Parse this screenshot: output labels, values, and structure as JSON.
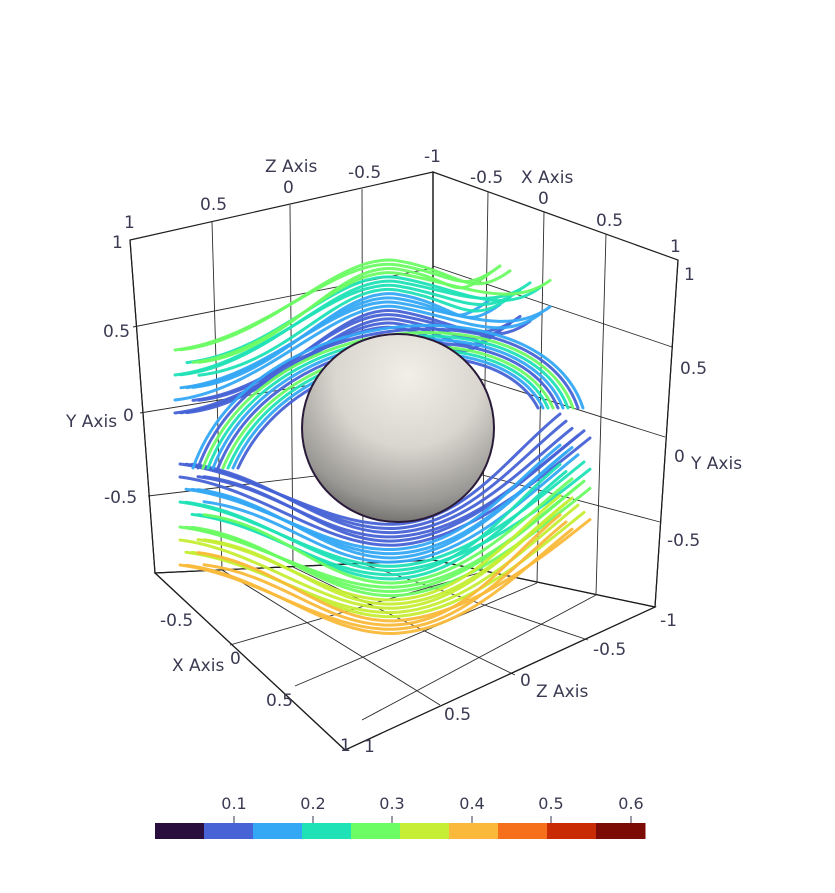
{
  "axes": {
    "x_title": "X Axis",
    "y_title": "Y Axis",
    "z_title": "Z Axis",
    "x_ticks_top": [
      "-0.5",
      "0",
      "0.5",
      "1"
    ],
    "z_ticks_top": [
      "0.5",
      "0",
      "-0.5",
      "-1"
    ],
    "y_ticks_left": [
      "1",
      "0.5",
      "0",
      "-0.5"
    ],
    "left_corner_top": "1",
    "y_ticks_right": [
      "1",
      "0.5",
      "0",
      "-0.5",
      "-1"
    ],
    "x_ticks_bottom": [
      "-0.5",
      "0",
      "0.5",
      "1"
    ],
    "z_ticks_bottom": [
      "-0.5",
      "0",
      "0.5",
      "1"
    ]
  },
  "colorbar": {
    "labels": [
      "0.1",
      "0.2",
      "0.3",
      "0.4",
      "0.5",
      "0.6"
    ],
    "colors": [
      "#2a0f3e",
      "#4763d6",
      "#35a8f5",
      "#1fe2b6",
      "#6cfc63",
      "#c5ee34",
      "#fab93a",
      "#f6701b",
      "#c92b04",
      "#7c0a05"
    ]
  },
  "sphere": {
    "color": "#e6e3dc"
  }
}
